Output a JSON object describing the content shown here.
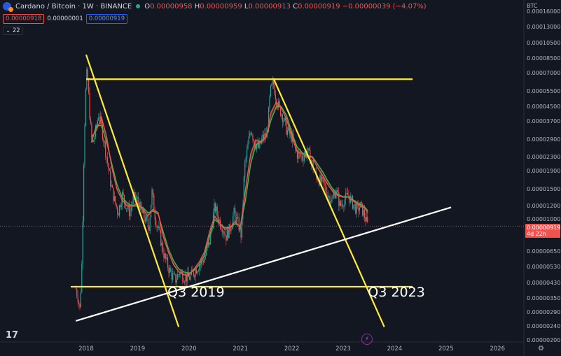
{
  "header": {
    "title": "Cardano / Bitcoin · 1W · BINANCE",
    "ohlc": {
      "o_label": "O",
      "o": "0.00000958",
      "h_label": "H",
      "h": "0.00000959",
      "l_label": "L",
      "l": "0.00000913",
      "c_label": "C",
      "c": "0.00000919",
      "change": "−0.00000039 (−4.07%)"
    },
    "bid": "0.00000918",
    "spread": "0.00000001",
    "ask": "0.00000919",
    "indicator_count": "22"
  },
  "colors": {
    "background": "#131722",
    "up_candle": "#26a69a",
    "down_candle": "#ef5350",
    "ma_fast": "#ef5350",
    "ma_slow": "#4caf50",
    "yellow_lines": "#ffeb3b",
    "white_line": "#ffffff"
  },
  "chart_data": {
    "type": "line",
    "scale": "log",
    "currency": "BTC",
    "y_ticks": [
      "0.00016000",
      "0.00013000",
      "0.00010500",
      "0.00008500",
      "0.00007000",
      "0.00005500",
      "0.00004500",
      "0.00003700",
      "0.00002900",
      "0.00002300",
      "0.00001900",
      "0.00001500",
      "0.00001200",
      "0.00001000",
      "0.00000800",
      "0.00000650",
      "0.00000530",
      "0.00000430",
      "0.00000350",
      "0.00000290",
      "0.00000240",
      "0.00000200"
    ],
    "x_ticks": [
      "2018",
      "2019",
      "2020",
      "2021",
      "2022",
      "2023",
      "2024",
      "2025",
      "2026"
    ],
    "ylim": [
      2e-06,
      0.00017
    ],
    "current_price": "0.00000919",
    "countdown": "4d 22h",
    "price_series": {
      "dates": [
        2017.8,
        2017.84,
        2017.88,
        2017.92,
        2017.96,
        2018.0,
        2018.02,
        2018.05,
        2018.08,
        2018.12,
        2018.18,
        2018.25,
        2018.3,
        2018.36,
        2018.42,
        2018.48,
        2018.55,
        2018.62,
        2018.7,
        2018.78,
        2018.85,
        2018.92,
        2019.0,
        2019.08,
        2019.16,
        2019.22,
        2019.28,
        2019.35,
        2019.42,
        2019.5,
        2019.58,
        2019.66,
        2019.74,
        2019.82,
        2019.9,
        2020.0,
        2020.1,
        2020.2,
        2020.3,
        2020.4,
        2020.5,
        2020.58,
        2020.66,
        2020.72,
        2020.8,
        2020.88,
        2020.96,
        2021.02,
        2021.08,
        2021.14,
        2021.2,
        2021.28,
        2021.36,
        2021.44,
        2021.52,
        2021.58,
        2021.64,
        2021.7,
        2021.76,
        2021.82,
        2021.9,
        2022.0,
        2022.1,
        2022.2,
        2022.3,
        2022.38,
        2022.46,
        2022.54,
        2022.62,
        2022.7,
        2022.78,
        2022.86,
        2022.94,
        2023.02,
        2023.1,
        2023.18,
        2023.26,
        2023.34,
        2023.42,
        2023.48
      ],
      "values": [
        4e-06,
        3.6e-06,
        3e-06,
        6e-06,
        2.8e-05,
        6.5e-05,
        7.2e-05,
        5.2e-05,
        3.6e-05,
        2.7e-05,
        3.2e-05,
        4.2e-05,
        3.4e-05,
        2.7e-05,
        2.1e-05,
        1.6e-05,
        1.3e-05,
        1.1e-05,
        1.4e-05,
        1.2e-05,
        1.1e-05,
        1.35e-05,
        1.3e-05,
        1.1e-05,
        1e-05,
        9e-06,
        1.45e-05,
        1e-05,
        8.5e-06,
        6.5e-06,
        5.5e-06,
        4.8e-06,
        4.5e-06,
        5e-06,
        4.7e-06,
        4.6e-06,
        5e-06,
        5.5e-06,
        6e-06,
        7.5e-06,
        1.2e-05,
        1e-05,
        9e-06,
        8e-06,
        9e-06,
        1.1e-05,
        9.5e-06,
        8e-06,
        2e-05,
        2.6e-05,
        3.4e-05,
        2.8e-05,
        2.6e-05,
        3e-05,
        3.1e-05,
        5.5e-05,
        6.2e-05,
        5e-05,
        4.4e-05,
        4e-05,
        3.3e-05,
        3e-05,
        2.4e-05,
        2.3e-05,
        2.5e-05,
        2.2e-05,
        1.8e-05,
        1.7e-05,
        1.6e-05,
        1.4e-05,
        1.3e-05,
        1.5e-05,
        1.2e-05,
        1.3e-05,
        1.4e-05,
        1.25e-05,
        1.15e-05,
        1.2e-05,
        1.05e-05,
        9.2e-06
      ]
    },
    "ma_fast": {
      "dates": [
        2018.1,
        2018.2,
        2018.3,
        2018.4,
        2018.5,
        2018.6,
        2018.7,
        2018.8,
        2018.9,
        2019.0,
        2019.1,
        2019.2,
        2019.3,
        2019.4,
        2019.5,
        2019.6,
        2019.7,
        2019.8,
        2019.9,
        2020.0,
        2020.1,
        2020.2,
        2020.3,
        2020.4,
        2020.5,
        2020.6,
        2020.7,
        2020.8,
        2020.9,
        2021.0,
        2021.1,
        2021.2,
        2021.3,
        2021.4,
        2021.5,
        2021.6,
        2021.7,
        2021.8,
        2021.9,
        2022.0,
        2022.1,
        2022.2,
        2022.3,
        2022.4,
        2022.5,
        2022.6,
        2022.7,
        2022.8,
        2022.9,
        2023.0,
        2023.1,
        2023.2,
        2023.3,
        2023.4,
        2023.48
      ],
      "values": [
        3e-05,
        3.3e-05,
        3.9e-05,
        3e-05,
        2e-05,
        1.5e-05,
        1.3e-05,
        1.2e-05,
        1.2e-05,
        1.25e-05,
        1.15e-05,
        1.05e-05,
        1.15e-05,
        1.1e-05,
        8e-06,
        6.5e-06,
        5.5e-06,
        5e-06,
        4.8e-06,
        4.8e-06,
        5.2e-06,
        5.7e-06,
        6.5e-06,
        8.5e-06,
        1.05e-05,
        9.5e-06,
        8.8e-06,
        9e-06,
        9.8e-06,
        9e-06,
        1.5e-05,
        2.4e-05,
        2.9e-05,
        2.8e-05,
        3e-05,
        4.2e-05,
        4.8e-05,
        4.4e-05,
        3.8e-05,
        3e-05,
        2.5e-05,
        2.4e-05,
        2.3e-05,
        2.3e-05,
        2e-05,
        1.8e-05,
        1.6e-05,
        1.45e-05,
        1.38e-05,
        1.35e-05,
        1.35e-05,
        1.28e-05,
        1.22e-05,
        1.18e-05,
        1.1e-05
      ]
    },
    "ma_slow": {
      "dates": [
        2018.1,
        2018.2,
        2018.3,
        2018.4,
        2018.5,
        2018.6,
        2018.7,
        2018.8,
        2018.9,
        2019.0,
        2019.1,
        2019.2,
        2019.3,
        2019.4,
        2019.5,
        2019.6,
        2019.7,
        2019.8,
        2019.9,
        2020.0,
        2020.1,
        2020.2,
        2020.3,
        2020.4,
        2020.5,
        2020.6,
        2020.7,
        2020.8,
        2020.9,
        2021.0,
        2021.1,
        2021.2,
        2021.3,
        2021.4,
        2021.5,
        2021.6,
        2021.7,
        2021.8,
        2021.9,
        2022.0,
        2022.1,
        2022.2,
        2022.3,
        2022.4,
        2022.5,
        2022.6,
        2022.7,
        2022.8,
        2022.9,
        2023.0,
        2023.1,
        2023.2,
        2023.3,
        2023.4,
        2023.48
      ],
      "values": [
        2.8e-05,
        3.5e-05,
        3.5e-05,
        2.8e-05,
        2.1e-05,
        1.6e-05,
        1.35e-05,
        1.25e-05,
        1.2e-05,
        1.2e-05,
        1.18e-05,
        1.1e-05,
        1.12e-05,
        1.08e-05,
        8.5e-06,
        6.8e-06,
        5.8e-06,
        5.2e-06,
        5e-06,
        4.9e-06,
        5.1e-06,
        5.5e-06,
        6.2e-06,
        8e-06,
        1e-05,
        9.5e-06,
        9e-06,
        9e-06,
        9.5e-06,
        9.2e-06,
        1.3e-05,
        2.1e-05,
        2.7e-05,
        2.85e-05,
        3e-05,
        3.8e-05,
        4.5e-05,
        4.5e-05,
        4e-05,
        3.2e-05,
        2.65e-05,
        2.45e-05,
        2.35e-05,
        2.32e-05,
        2.1e-05,
        1.9e-05,
        1.68e-05,
        1.5e-05,
        1.4e-05,
        1.36e-05,
        1.36e-05,
        1.3e-05,
        1.24e-05,
        1.2e-05,
        1.13e-05
      ]
    },
    "trendlines": [
      {
        "name": "top-resistance",
        "x1": 2018.0,
        "y1": 6.5e-05,
        "x2": 2024.35,
        "y2": 6.5e-05,
        "color": "#ffeb3b"
      },
      {
        "name": "bottom-support",
        "x1": 2017.7,
        "y1": 4.1e-06,
        "x2": 2024.35,
        "y2": 4.1e-06,
        "color": "#ffeb3b"
      },
      {
        "name": "diagonal-2018",
        "x1": 2018.0,
        "y1": 9e-05,
        "x2": 2019.8,
        "y2": 2.4e-06,
        "color": "#ffeb3b"
      },
      {
        "name": "diagonal-2021",
        "x1": 2021.65,
        "y1": 6.5e-05,
        "x2": 2023.8,
        "y2": 2.4e-06,
        "color": "#ffeb3b"
      },
      {
        "name": "rising-support",
        "x1": 2017.8,
        "y1": 2.6e-06,
        "x2": 2025.1,
        "y2": 1.18e-05,
        "color": "#ffffff"
      }
    ],
    "annotations": [
      {
        "text": "Q3 2019",
        "x": 2019.65,
        "y": 3.7e-06
      },
      {
        "text": "Q3 2023",
        "x": 2023.55,
        "y": 3.7e-06
      }
    ]
  }
}
